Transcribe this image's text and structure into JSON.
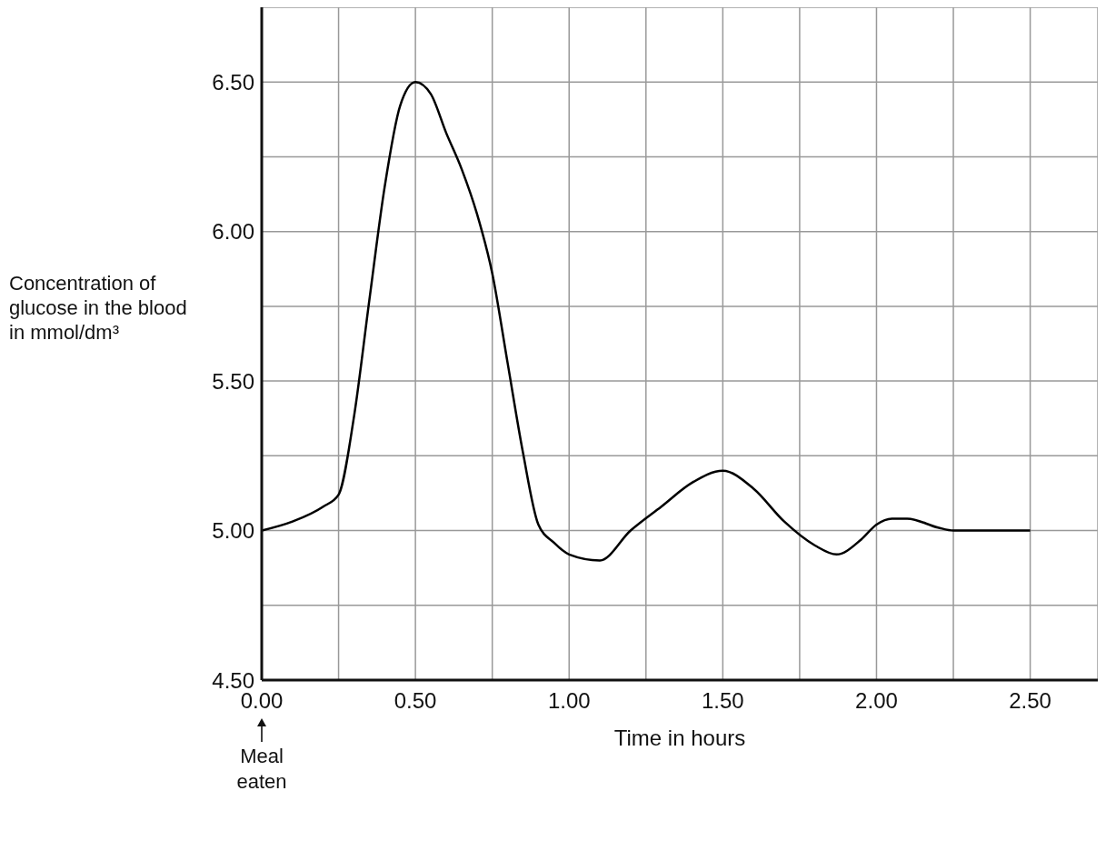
{
  "chart_data": {
    "type": "line",
    "xlabel": "Time in hours",
    "ylabel": "Concentration of glucose in the blood in mmol/dm³",
    "x": [
      0,
      0.1,
      0.2,
      0.25,
      0.3,
      0.35,
      0.4,
      0.45,
      0.5,
      0.55,
      0.6,
      0.65,
      0.7,
      0.75,
      0.8,
      0.85,
      0.9,
      0.95,
      1.0,
      1.1,
      1.2,
      1.3,
      1.4,
      1.5,
      1.6,
      1.7,
      1.8,
      1.87,
      1.95,
      2.0,
      2.05,
      2.1,
      2.2,
      2.25,
      2.5
    ],
    "series": [
      {
        "color": "#000000",
        "values": [
          5.0,
          5.03,
          5.08,
          5.12,
          5.38,
          5.77,
          6.15,
          6.42,
          6.5,
          6.46,
          6.33,
          6.21,
          6.06,
          5.86,
          5.56,
          5.26,
          5.02,
          4.96,
          4.92,
          4.9,
          5.0,
          5.08,
          5.16,
          5.2,
          5.14,
          5.03,
          4.95,
          4.92,
          4.97,
          5.02,
          5.04,
          5.04,
          5.01,
          5.0,
          5.0
        ]
      }
    ],
    "xlim": [
      0,
      2.72
    ],
    "xticks": [
      {
        "value": 0,
        "label": "0.00"
      },
      {
        "value": 0.25,
        "label": null
      },
      {
        "value": 0.5,
        "label": "0.50"
      },
      {
        "value": 0.75,
        "label": null
      },
      {
        "value": 1,
        "label": "1.00"
      },
      {
        "value": 1.25,
        "label": null
      },
      {
        "value": 1.5,
        "label": "1.50"
      },
      {
        "value": 1.75,
        "label": null
      },
      {
        "value": 2,
        "label": "2.00"
      },
      {
        "value": 2.25,
        "label": null
      },
      {
        "value": 2.5,
        "label": "2.50"
      }
    ],
    "ylim": [
      4.5,
      6.75
    ],
    "yticks": [
      {
        "value": 4.5,
        "label": "4.50"
      },
      {
        "value": 4.75,
        "label": null
      },
      {
        "value": 5,
        "label": "5.00"
      },
      {
        "value": 5.25,
        "label": null
      },
      {
        "value": 5.5,
        "label": "5.50"
      },
      {
        "value": 5.75,
        "label": null
      },
      {
        "value": 6,
        "label": "6.00"
      },
      {
        "value": 6.25,
        "label": null
      },
      {
        "value": 6.5,
        "label": "6.50"
      }
    ],
    "grid": true,
    "legend": false,
    "annotations": [
      "Meal eaten"
    ]
  }
}
